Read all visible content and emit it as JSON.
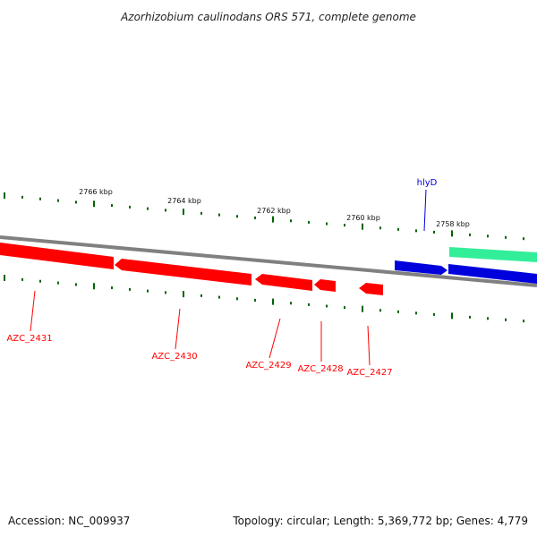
{
  "header": {
    "title": "Azorhizobium caulinodans ORS 571, complete genome"
  },
  "footer": {
    "accession": "Accession: NC_009937",
    "summary": "Topology: circular; Length: 5,369,772 bp; Genes: 4,779"
  },
  "map": {
    "backbone_color": "#808080",
    "tick_color": "#006400",
    "scale_ticks": [
      {
        "label": "2766 kbp"
      },
      {
        "label": "2764 kbp"
      },
      {
        "label": "2762 kbp"
      },
      {
        "label": "2760 kbp"
      },
      {
        "label": "2758 kbp"
      }
    ],
    "reverse_strand_genes": [
      {
        "name": "AZC_2431",
        "color": "#ff0000"
      },
      {
        "name": "AZC_2430",
        "color": "#ff0000"
      },
      {
        "name": "AZC_2429",
        "color": "#ff0000"
      },
      {
        "name": "AZC_2428",
        "color": "#ff0000"
      },
      {
        "name": "AZC_2427",
        "color": "#ff0000"
      }
    ],
    "forward_strand_genes": [
      {
        "name": "hlyD",
        "color": "#0000dd"
      },
      {
        "name": "",
        "color": "#0000dd"
      },
      {
        "name": "",
        "color": "#33ee99"
      }
    ]
  }
}
